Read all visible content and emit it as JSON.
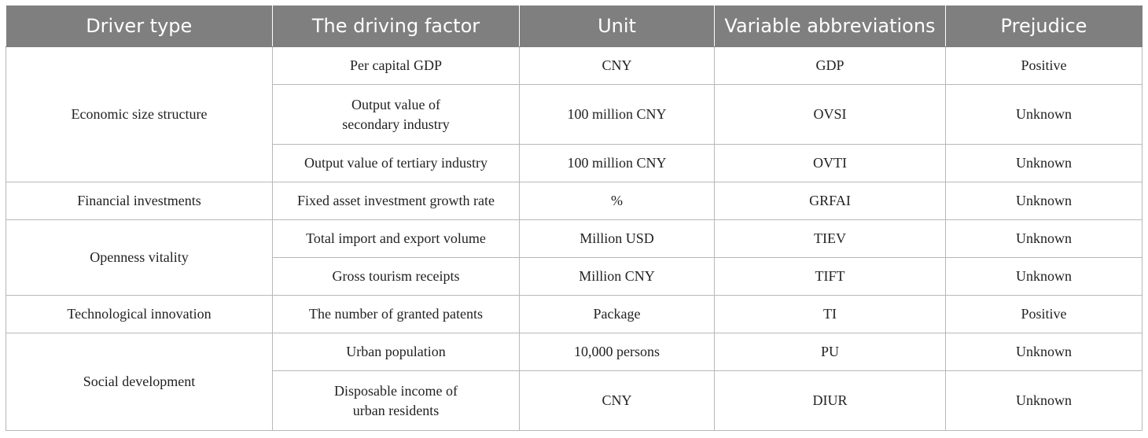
{
  "table": {
    "headers": [
      "Driver type",
      "The driving factor",
      "Unit",
      "Variable abbreviations",
      "Prejudice"
    ],
    "groups": [
      {
        "driver_type": "Economic size structure",
        "rows": [
          {
            "factor": [
              "Per capital GDP"
            ],
            "unit": "CNY",
            "abbr": "GDP",
            "prejudice": "Positive"
          },
          {
            "factor": [
              "Output value of",
              "secondary industry"
            ],
            "unit": "100 million CNY",
            "abbr": "OVSI",
            "prejudice": "Unknown"
          },
          {
            "factor": [
              "Output value of tertiary industry"
            ],
            "unit": "100 million CNY",
            "abbr": "OVTI",
            "prejudice": "Unknown"
          }
        ]
      },
      {
        "driver_type": "Financial investments",
        "rows": [
          {
            "factor": [
              "Fixed asset investment growth rate"
            ],
            "unit": "%",
            "abbr": "GRFAI",
            "prejudice": "Unknown"
          }
        ]
      },
      {
        "driver_type": "Openness vitality",
        "rows": [
          {
            "factor": [
              "Total import and export volume"
            ],
            "unit": "Million USD",
            "abbr": "TIEV",
            "prejudice": "Unknown"
          },
          {
            "factor": [
              "Gross tourism receipts"
            ],
            "unit": "Million CNY",
            "abbr": "TIFT",
            "prejudice": "Unknown"
          }
        ]
      },
      {
        "driver_type": "Technological innovation",
        "rows": [
          {
            "factor": [
              "The number of granted patents"
            ],
            "unit": "Package",
            "abbr": "TI",
            "prejudice": "Positive"
          }
        ]
      },
      {
        "driver_type": "Social development",
        "rows": [
          {
            "factor": [
              "Urban population"
            ],
            "unit": "10,000 persons",
            "abbr": "PU",
            "prejudice": "Unknown"
          },
          {
            "factor": [
              "Disposable income of",
              "urban residents"
            ],
            "unit": "CNY",
            "abbr": "DIUR",
            "prejudice": "Unknown"
          }
        ]
      }
    ]
  }
}
